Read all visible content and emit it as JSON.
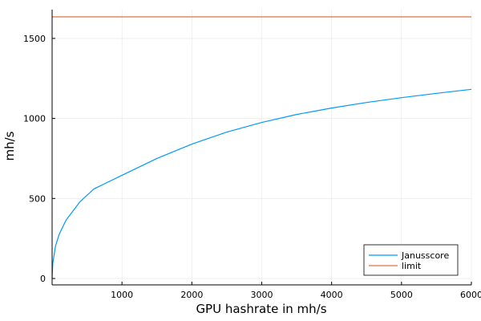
{
  "chart_data": {
    "type": "line",
    "title": "",
    "xlabel": "GPU hashrate in mh/s",
    "ylabel": "mh/s",
    "xlim": [
      0,
      6000
    ],
    "ylim": [
      -40,
      1680
    ],
    "x_ticks": [
      1000,
      2000,
      3000,
      4000,
      5000,
      6000
    ],
    "y_ticks": [
      0,
      500,
      1000,
      1500
    ],
    "grid": true,
    "legend_position": "bottom-right",
    "series": [
      {
        "name": "Janusscore",
        "color": "#009af9",
        "x": [
          0,
          10,
          50,
          100,
          200,
          400,
          600,
          1000,
          1500,
          2000,
          2500,
          3000,
          3500,
          4000,
          4500,
          5000,
          5500,
          6000
        ],
        "y": [
          0,
          97,
          205,
          275,
          365,
          480,
          560,
          645,
          750,
          840,
          915,
          975,
          1025,
          1065,
          1100,
          1130,
          1157,
          1182
        ]
      },
      {
        "name": "limit",
        "color": "#e26f46",
        "x": [
          0,
          6000
        ],
        "y": [
          1635,
          1635
        ]
      }
    ]
  }
}
